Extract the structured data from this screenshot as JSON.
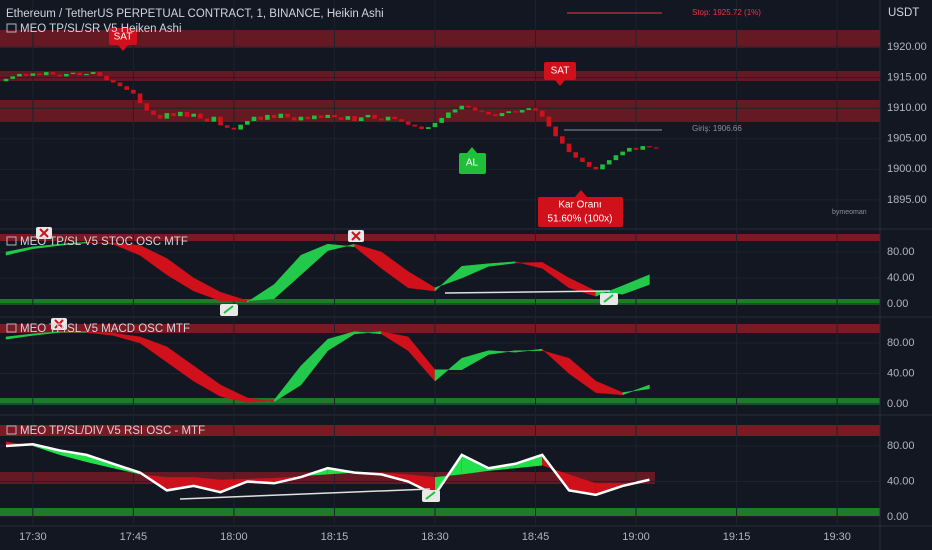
{
  "chart_data": [
    {
      "type": "candlestick",
      "title": "Ethereum / TetherUS PERPETUAL CONTRACT, 1, BINANCE, Heikin Ashi",
      "subtitle": "MEO TP/SL/SR V5 Heiken Ashi",
      "unit": "USDT",
      "up_color": "#1fbf3a",
      "down_color": "#d0101a",
      "open": [
        1914.4,
        1914.8,
        1915.2,
        1915.6,
        1915.3,
        1915.7,
        1915.4,
        1915.9,
        1915.5,
        1915.2,
        1915.6,
        1915.8,
        1915.4,
        1915.6,
        1915.9,
        1915.3,
        1914.6,
        1914.2,
        1913.6,
        1913.0,
        1912.4,
        1910.8,
        1909.6,
        1908.9,
        1908.3,
        1909.2,
        1908.7,
        1909.4,
        1908.6,
        1909.1,
        1908.3,
        1907.8,
        1908.6,
        1907.2,
        1906.8,
        1906.5,
        1907.3,
        1907.9,
        1908.6,
        1908.1,
        1908.9,
        1908.4,
        1909.1,
        1908.5,
        1908.0,
        1908.6,
        1908.2,
        1908.8,
        1908.4,
        1908.9,
        1908.5,
        1908.1,
        1908.7,
        1907.9,
        1908.5,
        1908.9,
        1908.3,
        1908.0,
        1908.6,
        1908.2,
        1907.8,
        1907.3,
        1907.0,
        1906.6,
        1906.9,
        1907.6,
        1908.4,
        1909.3,
        1909.8,
        1910.4,
        1910.1,
        1909.6,
        1909.4,
        1909.0,
        1908.7,
        1909.2,
        1909.5,
        1909.3,
        1909.7,
        1910.0,
        1909.6,
        1908.6,
        1907.0,
        1905.4,
        1904.2,
        1902.8,
        1901.9,
        1901.2,
        1900.4,
        1900.0,
        1900.8,
        1901.5,
        1902.3,
        1902.9,
        1903.5,
        1903.2,
        1903.8,
        1903.6
      ],
      "close": [
        1914.8,
        1915.2,
        1915.6,
        1915.3,
        1915.7,
        1915.4,
        1915.9,
        1915.5,
        1915.2,
        1915.6,
        1915.8,
        1915.4,
        1915.6,
        1915.9,
        1915.3,
        1914.6,
        1914.2,
        1913.6,
        1913.0,
        1912.4,
        1910.8,
        1909.6,
        1908.9,
        1908.3,
        1909.2,
        1908.7,
        1909.4,
        1908.6,
        1909.1,
        1908.3,
        1907.8,
        1908.6,
        1907.2,
        1906.8,
        1906.5,
        1907.3,
        1907.9,
        1908.6,
        1908.1,
        1908.9,
        1908.4,
        1909.1,
        1908.5,
        1908.0,
        1908.6,
        1908.2,
        1908.8,
        1908.4,
        1908.9,
        1908.5,
        1908.1,
        1908.7,
        1907.9,
        1908.5,
        1908.9,
        1908.3,
        1908.0,
        1908.6,
        1908.2,
        1907.8,
        1907.3,
        1907.0,
        1906.6,
        1906.9,
        1907.6,
        1908.4,
        1909.3,
        1909.8,
        1910.4,
        1910.1,
        1909.6,
        1909.4,
        1909.0,
        1908.7,
        1909.2,
        1909.5,
        1909.3,
        1909.7,
        1910.0,
        1909.6,
        1908.6,
        1907.0,
        1905.4,
        1904.2,
        1902.8,
        1901.9,
        1901.2,
        1900.4,
        1900.0,
        1900.8,
        1901.5,
        1902.3,
        1902.9,
        1903.5,
        1903.2,
        1903.8,
        1903.6,
        1903.4
      ],
      "xlim": [
        -0.9,
        130.4
      ],
      "xticks": [
        {
          "value": 4,
          "label": "17:30"
        },
        {
          "value": 19,
          "label": "17:45"
        },
        {
          "value": 34,
          "label": "18:00"
        },
        {
          "value": 49,
          "label": "18:15"
        },
        {
          "value": 64,
          "label": "18:30"
        },
        {
          "value": 79,
          "label": "18:45"
        },
        {
          "value": 94,
          "label": "19:00"
        },
        {
          "value": 109,
          "label": "19:15"
        },
        {
          "value": 124,
          "label": "19:30"
        }
      ],
      "ylim": [
        1890.4,
        1927.7
      ],
      "yticks": [
        {
          "value": 1895,
          "label": "1895.00"
        },
        {
          "value": 1900,
          "label": "1900.00"
        },
        {
          "value": 1905,
          "label": "1905.00"
        },
        {
          "value": 1910,
          "label": "1910.00"
        },
        {
          "value": 1915,
          "label": "1915.00"
        },
        {
          "value": 1920,
          "label": "1920.00"
        }
      ],
      "sell_labels": [
        "SAT",
        "SAT"
      ],
      "buy_label": "AL",
      "profit_label": "Kar Oranı",
      "profit_value": "51.60% (100x)",
      "stop_label": "Stop: 1925.72 (1%)",
      "entry_label": "Giriş: 1906.66",
      "watermark": "bymeoman"
    },
    {
      "type": "ribbon",
      "title": "MEO TP/SL V5 STOC OSC MTF",
      "x": [
        0,
        4,
        8,
        12,
        16,
        20,
        24,
        28,
        32,
        36,
        40,
        44,
        48,
        52,
        56,
        60,
        64,
        68,
        72,
        76,
        80,
        84,
        88,
        92,
        96
      ],
      "series": [
        {
          "color": "#22c94a",
          "values": [
            80,
            88,
            92,
            95,
            92,
            75,
            45,
            20,
            5,
            3,
            30,
            75,
            92,
            88,
            55,
            25,
            20,
            58,
            62,
            65,
            55,
            25,
            12,
            28,
            45
          ]
        },
        {
          "color": "#d0101a",
          "values": [
            75,
            85,
            90,
            94,
            94,
            90,
            70,
            40,
            18,
            5,
            8,
            45,
            82,
            92,
            80,
            50,
            25,
            40,
            58,
            63,
            64,
            40,
            20,
            15,
            30
          ]
        }
      ],
      "ylim": [
        -16.9,
        113.8
      ],
      "yticks": [
        {
          "value": 0,
          "label": "0.00"
        },
        {
          "value": 40,
          "label": "40.00"
        },
        {
          "value": 80,
          "label": "80.00"
        }
      ]
    },
    {
      "type": "ribbon",
      "title": "MEO TP/SL V5 MACD OSC MTF",
      "x": [
        0,
        4,
        8,
        12,
        16,
        20,
        24,
        28,
        32,
        36,
        40,
        44,
        48,
        52,
        56,
        60,
        64,
        68,
        72,
        76,
        80,
        84,
        88,
        92,
        96
      ],
      "series": [
        {
          "color": "#22c94a",
          "values": [
            88,
            92,
            95,
            94,
            90,
            80,
            55,
            30,
            10,
            2,
            5,
            50,
            85,
            95,
            92,
            70,
            30,
            60,
            70,
            68,
            72,
            40,
            15,
            12,
            25
          ]
        },
        {
          "color": "#d0101a",
          "values": [
            85,
            90,
            94,
            95,
            93,
            88,
            75,
            50,
            25,
            8,
            3,
            25,
            70,
            92,
            95,
            88,
            45,
            45,
            65,
            70,
            70,
            60,
            30,
            15,
            20
          ]
        }
      ],
      "ylim": [
        -10.5,
        110.2
      ],
      "yticks": [
        {
          "value": 0,
          "label": "0.00"
        },
        {
          "value": 40,
          "label": "40.00"
        },
        {
          "value": 80,
          "label": "80.00"
        }
      ]
    },
    {
      "type": "rsi",
      "title": "MEO TP/SL/DIV V5 RSI OSC - MTF",
      "x": [
        0,
        4,
        8,
        12,
        16,
        20,
        24,
        28,
        32,
        36,
        40,
        44,
        48,
        52,
        56,
        60,
        64,
        68,
        72,
        76,
        80,
        84,
        88,
        92,
        96
      ],
      "series": [
        {
          "color": "#ffffff",
          "values": [
            80,
            82,
            75,
            70,
            60,
            50,
            30,
            35,
            28,
            40,
            38,
            45,
            55,
            50,
            48,
            40,
            25,
            70,
            55,
            60,
            70,
            30,
            25,
            35,
            42
          ]
        },
        {
          "color": "#d0101a",
          "values": [
            85,
            80,
            70,
            62,
            55,
            48,
            45,
            45,
            42,
            43,
            44,
            46,
            48,
            50,
            50,
            48,
            45,
            48,
            52,
            55,
            58,
            48,
            38,
            38,
            40
          ]
        }
      ],
      "fill_up": "#22e04a",
      "ylim": [
        -9.0,
        109.3
      ],
      "yticks": [
        {
          "value": 0,
          "label": "0.00"
        },
        {
          "value": 40,
          "label": "40.00"
        },
        {
          "value": 80,
          "label": "80.00"
        }
      ]
    }
  ]
}
